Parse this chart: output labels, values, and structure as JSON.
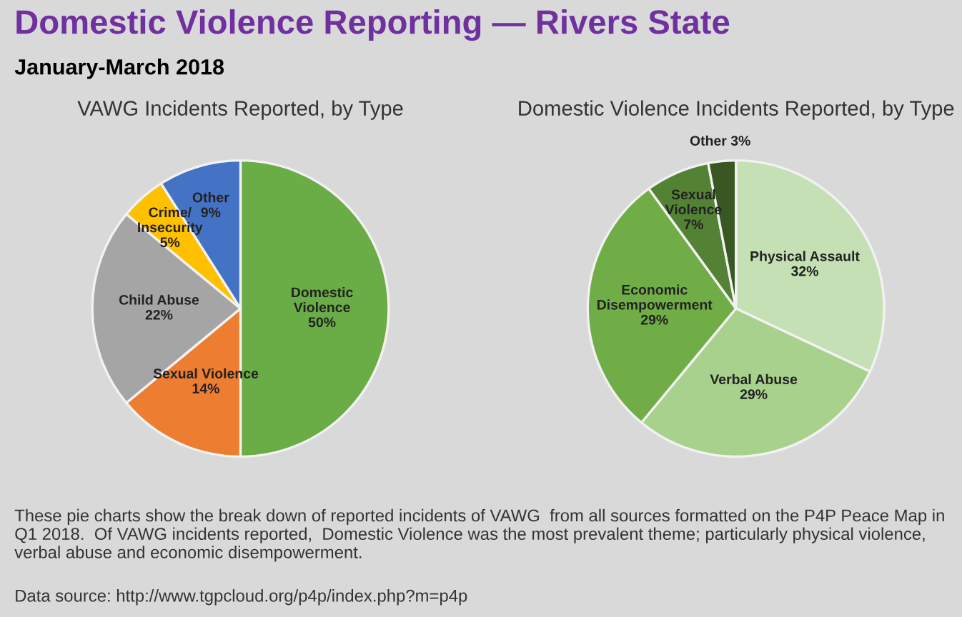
{
  "chart_data": [
    {
      "type": "other",
      "title": "Domestic Violence Reporting — Rivers State",
      "subtitle": "January-March 2018",
      "annotations": [
        "These pie charts show the break down of reported incidents of VAWG  from all sources formatted on the P4P Peace Map in Q1 2018.  Of VAWG incidents reported,  Domestic Violence was the most prevalent theme; particularly physical violence, verbal abuse and economic disempowerment.",
        "Data source: http://www.tgpcloud.org/p4p/index.php?m=p4p"
      ]
    },
    {
      "type": "pie",
      "title": "VAWG Incidents Reported, by Type",
      "categories": [
        "Domestic Violence",
        "Sexual Violence",
        "Child Abuse",
        "Crime/ Insecurity",
        "Other"
      ],
      "values": [
        50,
        14,
        22,
        5,
        9
      ],
      "value_labels": [
        "50%",
        "14%",
        "22%",
        "5%",
        "9%"
      ],
      "colors": [
        "#6aac46",
        "#ed7d31",
        "#a5a5a5",
        "#ffc000",
        "#4472c4"
      ],
      "legend": false
    },
    {
      "type": "pie",
      "title": "Domestic Violence Incidents Reported, by Type",
      "categories": [
        "Physical Assault",
        "Verbal Abuse",
        "Economic Disempowerment",
        "Sexual Violence",
        "Other"
      ],
      "values": [
        32,
        29,
        29,
        7,
        3
      ],
      "value_labels": [
        "32%",
        "29%",
        "29%",
        "7%",
        "3%"
      ],
      "colors": [
        "#c5e0b4",
        "#a9d18e",
        "#70ad47",
        "#548235",
        "#385723"
      ],
      "legend": false
    }
  ]
}
